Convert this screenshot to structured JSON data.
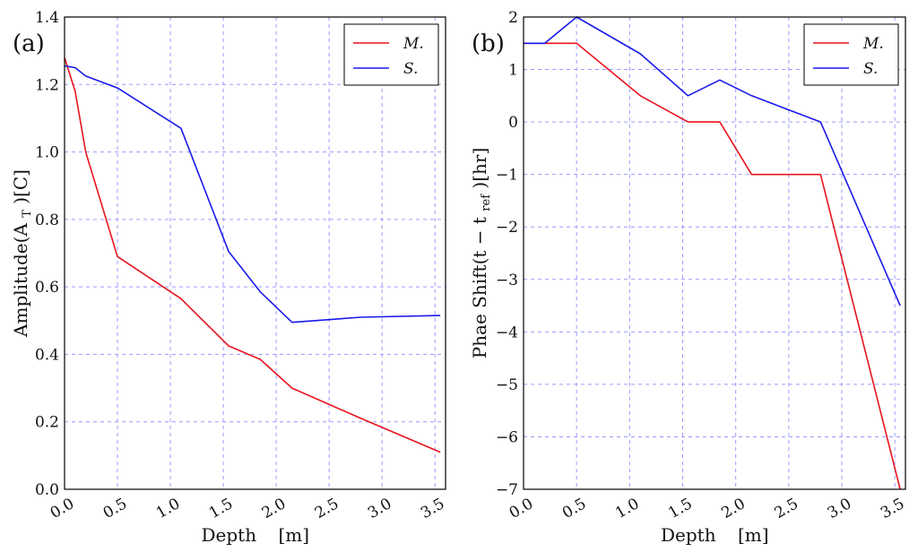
{
  "chart_data": [
    {
      "type": "line",
      "panel_label": "(a)",
      "xlabel_main": "Depth",
      "xlabel_unit": "[m]",
      "ylabel_parts": [
        "Amplitude(A",
        "T",
        ")[C]"
      ],
      "xlim": [
        0.0,
        3.6
      ],
      "ylim": [
        0.0,
        1.4
      ],
      "xticks": [
        "0.0",
        "0.5",
        "1.0",
        "1.5",
        "2.0",
        "2.5",
        "3.0",
        "3.5"
      ],
      "xtick_values": [
        0.0,
        0.5,
        1.0,
        1.5,
        2.0,
        2.5,
        3.0,
        3.5
      ],
      "yticks": [
        "0.0",
        "0.2",
        "0.4",
        "0.6",
        "0.8",
        "1.0",
        "1.2",
        "1.4"
      ],
      "ytick_values": [
        0.0,
        0.2,
        0.4,
        0.6,
        0.8,
        1.0,
        1.2,
        1.4
      ],
      "grid": true,
      "legend_position": "top-right",
      "series": [
        {
          "name": "M.",
          "color": "#e8141e",
          "x": [
            0.0,
            0.1,
            0.2,
            0.5,
            1.1,
            1.55,
            1.85,
            2.15,
            2.8,
            3.55
          ],
          "y": [
            1.28,
            1.18,
            1.0,
            0.69,
            0.565,
            0.425,
            0.385,
            0.3,
            0.21,
            0.11
          ]
        },
        {
          "name": "S.",
          "color": "#1a1ae8",
          "x": [
            0.0,
            0.1,
            0.2,
            0.5,
            1.1,
            1.55,
            1.85,
            2.15,
            2.8,
            3.55
          ],
          "y": [
            1.255,
            1.25,
            1.225,
            1.19,
            1.07,
            0.705,
            0.585,
            0.495,
            0.51,
            0.515
          ]
        }
      ]
    },
    {
      "type": "line",
      "panel_label": "(b)",
      "xlabel_main": "Depth",
      "xlabel_unit": "[m]",
      "ylabel_parts": [
        "Phae Shift(t − t",
        "ref",
        ")[hr]"
      ],
      "xlim": [
        0.0,
        3.6
      ],
      "ylim": [
        -7,
        2
      ],
      "xticks": [
        "0.0",
        "0.5",
        "1.0",
        "1.5",
        "2.0",
        "2.5",
        "3.0",
        "3.5"
      ],
      "xtick_values": [
        0.0,
        0.5,
        1.0,
        1.5,
        2.0,
        2.5,
        3.0,
        3.5
      ],
      "yticks": [
        "2",
        "1",
        "0",
        "−1",
        "−2",
        "−3",
        "−4",
        "−5",
        "−6",
        "−7"
      ],
      "ytick_values": [
        2,
        1,
        0,
        -1,
        -2,
        -3,
        -4,
        -5,
        -6,
        -7
      ],
      "grid": true,
      "legend_position": "top-right",
      "series": [
        {
          "name": "M.",
          "color": "#e8141e",
          "x": [
            0.0,
            0.2,
            0.5,
            1.1,
            1.55,
            1.85,
            2.15,
            2.8,
            3.55
          ],
          "y": [
            1.5,
            1.5,
            1.5,
            0.5,
            0.0,
            0.0,
            -1.0,
            -1.0,
            -7.0
          ]
        },
        {
          "name": "S.",
          "color": "#1a1ae8",
          "x": [
            0.0,
            0.2,
            0.5,
            1.1,
            1.55,
            1.85,
            2.15,
            2.8,
            3.55
          ],
          "y": [
            1.5,
            1.5,
            2.0,
            1.3,
            0.5,
            0.8,
            0.5,
            0.0,
            -3.5
          ]
        }
      ]
    }
  ]
}
